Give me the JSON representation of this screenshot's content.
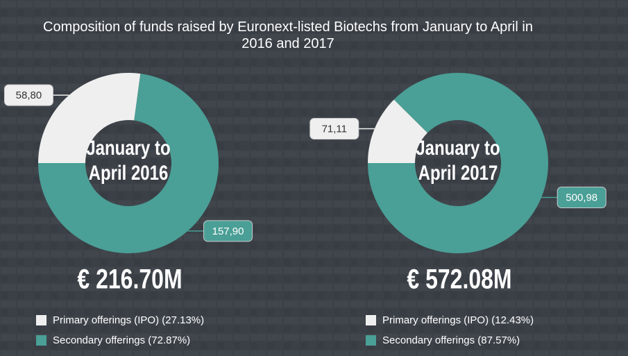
{
  "title": "Composition of funds raised by Euronext-listed Biotechs from January to April in 2016 and 2017",
  "chart_data": [
    {
      "type": "donut",
      "center_label": [
        "January to",
        "April 2016"
      ],
      "total_label": "€ 216.70M",
      "categories": [
        "Primary offerings (IPO) (27.13%)",
        "Secondary offerings (72.87%)"
      ],
      "values": [
        58.8,
        157.9
      ],
      "value_labels": [
        "58,80",
        "157,90"
      ],
      "colors": [
        "#efefef",
        "#4a9f96"
      ]
    },
    {
      "type": "donut",
      "center_label": [
        "January to",
        "April 2017"
      ],
      "total_label": "€ 572.08M",
      "categories": [
        "Primary offerings (IPO) (12.43%)",
        "Secondary offerings (87.57%)"
      ],
      "values": [
        71.11,
        500.98
      ],
      "value_labels": [
        "71,11",
        "500,98"
      ],
      "colors": [
        "#efefef",
        "#4a9f96"
      ]
    }
  ]
}
